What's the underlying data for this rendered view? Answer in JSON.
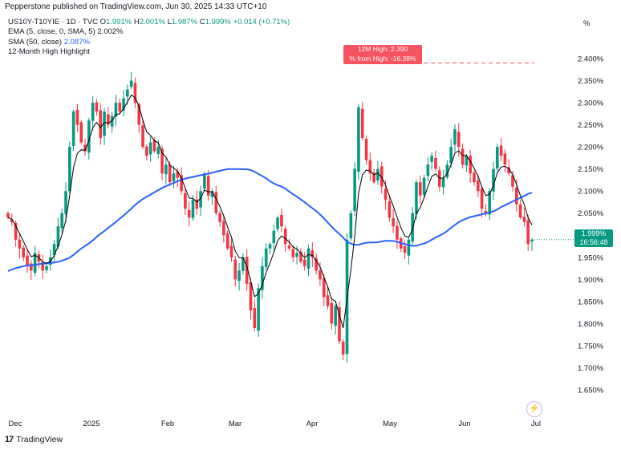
{
  "header": {
    "published": "Pepperstone published on TradingView.com, Jun 30, 2025 14:33 UTC+10"
  },
  "legend": {
    "symbol": "US10Y-T10YIE · 1D · TVC",
    "open_label": "O",
    "open": "1.991%",
    "high_label": "H",
    "high": "2.001%",
    "low_label": "L",
    "low": "1.987%",
    "close_label": "C",
    "close": "1.999%",
    "change": "+0.014 (+0.71%)",
    "ema_label": "EMA (5, close, 0, SMA, 5)",
    "ema_value": "2.002%",
    "sma_label": "SMA (50, close)",
    "sma_value": "2.087%",
    "highlight_label": "12-Month High Highlight"
  },
  "axis": {
    "unit": "%",
    "y_ticks": [
      "2.400%",
      "2.350%",
      "2.300%",
      "2.250%",
      "2.200%",
      "2.150%",
      "2.100%",
      "2.050%",
      "2.000%",
      "1.950%",
      "1.900%",
      "1.850%",
      "1.800%",
      "1.750%",
      "1.700%",
      "1.650%"
    ],
    "x_ticks": [
      "Dec",
      "2025",
      "Feb",
      "Mar",
      "Apr",
      "May",
      "Jun",
      "Jul"
    ]
  },
  "callout": {
    "line1": "12M High: 2.390",
    "line2": "% from High: -16.38%"
  },
  "last_price": {
    "value": "1.999%",
    "countdown": "16:56:48"
  },
  "brand": {
    "mark": "17",
    "name": "TradingView"
  },
  "colors": {
    "up": "#089981",
    "down": "#f23645",
    "sma": "#2962ff",
    "ema": "#000000",
    "highlight": "#f7525f"
  },
  "chart_data": {
    "type": "candlestick",
    "ylim": [
      1.63,
      2.42
    ],
    "ema_period": 5,
    "sma_period": 50,
    "twelve_month_high": 2.39,
    "close": [
      2.04,
      2.03,
      1.99,
      1.97,
      1.95,
      1.93,
      1.92,
      1.96,
      1.94,
      1.92,
      1.93,
      1.95,
      1.98,
      2.02,
      2.05,
      2.1,
      2.2,
      2.28,
      2.25,
      2.21,
      2.19,
      2.26,
      2.3,
      2.28,
      2.22,
      2.28,
      2.25,
      2.27,
      2.3,
      2.28,
      2.31,
      2.33,
      2.35,
      2.3,
      2.25,
      2.2,
      2.18,
      2.21,
      2.19,
      2.2,
      2.14,
      2.16,
      2.12,
      2.14,
      2.13,
      2.1,
      2.06,
      2.04,
      2.08,
      2.06,
      2.1,
      2.14,
      2.09,
      2.1,
      2.05,
      2.03,
      2.0,
      1.97,
      1.95,
      1.9,
      1.92,
      1.95,
      1.89,
      1.83,
      1.79,
      1.88,
      1.93,
      1.97,
      1.98,
      2.01,
      2.04,
      2.02,
      1.98,
      1.97,
      1.95,
      1.96,
      1.94,
      1.93,
      1.97,
      1.95,
      1.92,
      1.9,
      1.86,
      1.84,
      1.8,
      1.84,
      1.76,
      1.73,
      1.99,
      2.05,
      2.15,
      2.29,
      2.22,
      2.17,
      2.14,
      2.12,
      2.15,
      2.11,
      2.08,
      2.04,
      2.02,
      1.99,
      1.97,
      1.96,
      1.99,
      2.05,
      2.12,
      2.09,
      2.13,
      2.16,
      2.18,
      2.15,
      2.11,
      2.13,
      2.16,
      2.2,
      2.24,
      2.2,
      2.16,
      2.18,
      2.14,
      2.12,
      2.1,
      2.06,
      2.05,
      2.1,
      2.15,
      2.2,
      2.18,
      2.16,
      2.14,
      2.11,
      2.07,
      2.04,
      2.03,
      1.98,
      1.99
    ],
    "first_open": 2.05
  }
}
